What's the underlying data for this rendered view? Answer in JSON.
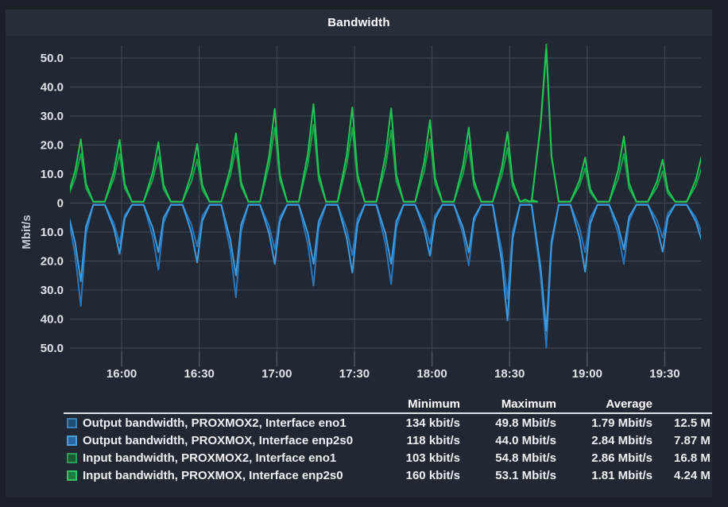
{
  "panel": {
    "title": "Bandwidth"
  },
  "colors": {
    "page_bg": "#1b1f28",
    "panel_bg": "#212733",
    "titlebar_bg": "#272e3a",
    "grid": "#424b59",
    "tick_mark": "#4d5665",
    "axis_text": "#dfe2e7",
    "unit_text": "#c7ccd4"
  },
  "chart_data": {
    "type": "line",
    "title": "Bandwidth",
    "xlabel": "",
    "ylabel": "Mbit/s",
    "grid": true,
    "legend_position": "bottom-table",
    "x_range_minutes": [
      940,
      1184
    ],
    "ylim": [
      -53,
      55
    ],
    "x_ticks": [
      {
        "label": "16:00",
        "t": 960
      },
      {
        "label": "16:30",
        "t": 990
      },
      {
        "label": "17:00",
        "t": 1020
      },
      {
        "label": "17:30",
        "t": 1050
      },
      {
        "label": "18:00",
        "t": 1080
      },
      {
        "label": "18:30",
        "t": 1110
      },
      {
        "label": "19:00",
        "t": 1140
      },
      {
        "label": "19:30",
        "t": 1170
      }
    ],
    "y_ticks": [
      {
        "label": "50.0",
        "v": 50
      },
      {
        "label": "40.0",
        "v": 40
      },
      {
        "label": "30.0",
        "v": 30
      },
      {
        "label": "20.0",
        "v": 20
      },
      {
        "label": "10.0",
        "v": 10
      },
      {
        "label": "0",
        "v": 0
      },
      {
        "label": "10.0",
        "v": -10
      },
      {
        "label": "20.0",
        "v": -20
      },
      {
        "label": "30.0",
        "v": -30
      },
      {
        "label": "40.0",
        "v": -40
      },
      {
        "label": "50.0",
        "v": -50
      }
    ],
    "spike_times": [
      945,
      960,
      975,
      990,
      1005,
      1020,
      1035,
      1050,
      1065,
      1080,
      1095,
      1110,
      1125,
      1140,
      1155,
      1170,
      1185
    ],
    "series": [
      {
        "name": "Output bandwidth, PROXMOX2, Interface eno1",
        "color": "#2a76bb",
        "base": -0.6,
        "values": [
          -35.5,
          -14,
          -23,
          -15,
          -32.5,
          -16,
          -28.5,
          -18,
          -28,
          -14,
          -21.5,
          -33,
          -49.8,
          -17,
          -21,
          -12,
          -10
        ]
      },
      {
        "name": "Output bandwidth, PROXMOX, Interface enp2s0",
        "color": "#3d9be0",
        "base": -0.6,
        "values": [
          -27,
          -17.5,
          -17,
          -20.5,
          -25,
          -21,
          -21,
          -24,
          -21,
          -18.2,
          -17,
          -40.5,
          -44,
          -23.7,
          -16,
          -16.8,
          -12.7
        ]
      },
      {
        "name": "Input bandwidth, PROXMOX2, Interface eno1",
        "color": "#18a246",
        "base": 0.5,
        "values": [
          17,
          17,
          16,
          15,
          19,
          26,
          27,
          26,
          25,
          22,
          20,
          19,
          54.8,
          12,
          17,
          11,
          12
        ]
      },
      {
        "name": "Input bandwidth, PROXMOX, Interface enp2s0",
        "color": "#21c653",
        "base": 0.5,
        "values": [
          22,
          21.8,
          21,
          20.4,
          24,
          32.5,
          34.1,
          33,
          32.7,
          28.6,
          26,
          24.5,
          53.1,
          15.7,
          23,
          15,
          16
        ],
        "bumps": [
          {
            "t": 1116,
            "v": 1.2
          },
          {
            "t": 1119,
            "v": 0.9
          }
        ]
      }
    ]
  },
  "legend": {
    "columns": {
      "minimum": "Minimum",
      "maximum": "Maximum",
      "average": "Average"
    },
    "rows": [
      {
        "label": "Output bandwidth, PROXMOX2, Interface eno1",
        "min": "134 kbit/s",
        "max": "49.8 Mbit/s",
        "avg": "1.79 Mbit/s",
        "extra": "12.5 M",
        "swatch_fill": "#1d4e73",
        "swatch_border": "#3d7fb4"
      },
      {
        "label": "Output bandwidth, PROXMOX, Interface enp2s0",
        "min": "118 kbit/s",
        "max": "44.0 Mbit/s",
        "avg": "2.84 Mbit/s",
        "extra": "7.87 M",
        "swatch_fill": "#2766a0",
        "swatch_border": "#4d9bd5"
      },
      {
        "label": "Input bandwidth, PROXMOX2, Interface eno1",
        "min": "103 kbit/s",
        "max": "54.8 Mbit/s",
        "avg": "2.86 Mbit/s",
        "extra": "16.8 M",
        "swatch_fill": "#175a33",
        "swatch_border": "#2b9e57"
      },
      {
        "label": "Input bandwidth, PROXMOX, Interface enp2s0",
        "min": "160 kbit/s",
        "max": "53.1 Mbit/s",
        "avg": "1.81 Mbit/s",
        "extra": "4.24 M",
        "swatch_fill": "#1d7a42",
        "swatch_border": "#31c467"
      }
    ]
  }
}
